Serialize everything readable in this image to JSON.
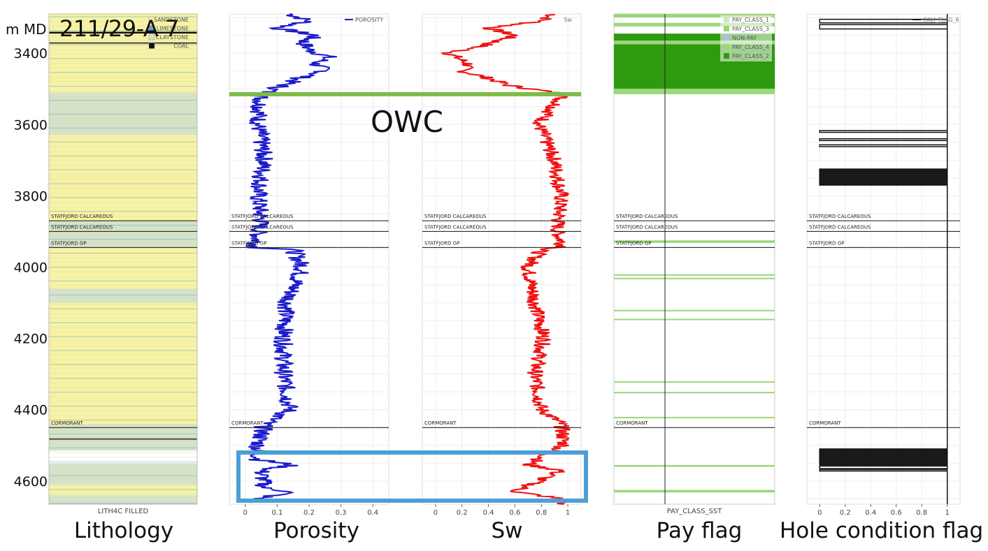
{
  "well_name": "211/29-A 7",
  "depth_unit": "m MD",
  "owc_label": "OWC",
  "colors": {
    "sandstone": "#f8f2a2",
    "limestone": "#5aa9dc",
    "claystone": "#d6e2c6",
    "coal": "#111111",
    "porosity": "#1a1acc",
    "sw": "#f01010",
    "owc_line": "#7dbb46",
    "pay_light": "#9bd77a",
    "pay_dark": "#2f9a0f",
    "highlight_box": "#4b9fd6"
  },
  "chart_data": {
    "type": "line",
    "depth_range": [
      3290,
      4665
    ],
    "depth_ticks": [
      3400,
      3600,
      3800,
      4000,
      4200,
      4400,
      4600
    ],
    "owc_depth": 3515,
    "highlight_interval": [
      4520,
      4655
    ],
    "formation_tops": [
      {
        "name": "STATFJORD CALCAREOUS",
        "depth": 3870
      },
      {
        "name": "STATFJORD CALCAREOUS",
        "depth": 3900
      },
      {
        "name": "STATFJORD GP",
        "depth": 3945
      },
      {
        "name": "CORMORANT",
        "depth": 4450
      }
    ],
    "tracks": [
      {
        "id": "lithology",
        "title": "Lithology",
        "axis_label": "LITH4C FILLED",
        "legend": [
          "SANDSTONE",
          "LIMESTONE",
          "CLAYSTONE",
          "COAL"
        ],
        "intervals": [
          {
            "top": 3290,
            "base": 3340,
            "lith": "sandstone"
          },
          {
            "top": 3340,
            "base": 3345,
            "lith": "coal"
          },
          {
            "top": 3345,
            "base": 3370,
            "lith": "sandstone"
          },
          {
            "top": 3370,
            "base": 3373,
            "lith": "coal"
          },
          {
            "top": 3373,
            "base": 3510,
            "lith": "sandstone"
          },
          {
            "top": 3510,
            "base": 3630,
            "lith": "claystone"
          },
          {
            "top": 3630,
            "base": 3870,
            "lith": "sandstone"
          },
          {
            "top": 3870,
            "base": 3945,
            "lith": "claystone"
          },
          {
            "top": 3945,
            "base": 4060,
            "lith": "sandstone"
          },
          {
            "top": 4060,
            "base": 4100,
            "lith": "claystone"
          },
          {
            "top": 4100,
            "base": 4440,
            "lith": "sandstone"
          },
          {
            "top": 4440,
            "base": 4480,
            "lith": "claystone"
          },
          {
            "top": 4480,
            "base": 4484,
            "lith": "coal"
          },
          {
            "top": 4484,
            "base": 4515,
            "lith": "claystone"
          },
          {
            "top": 4515,
            "base": 4550,
            "lith": "white"
          },
          {
            "top": 4550,
            "base": 4610,
            "lith": "claystone"
          },
          {
            "top": 4610,
            "base": 4640,
            "lith": "sandstone"
          },
          {
            "top": 4640,
            "base": 4665,
            "lith": "claystone"
          }
        ]
      },
      {
        "id": "porosity",
        "title": "Porosity",
        "legend": [
          "POROSITY"
        ],
        "xlim": [
          -0.05,
          0.45
        ],
        "xticks": [
          "0",
          "0.1",
          "0.2",
          "0.3",
          "0.4"
        ],
        "profile": [
          [
            3290,
            0.14
          ],
          [
            3310,
            0.2
          ],
          [
            3330,
            0.1
          ],
          [
            3350,
            0.22
          ],
          [
            3370,
            0.18
          ],
          [
            3390,
            0.2
          ],
          [
            3410,
            0.26
          ],
          [
            3430,
            0.22
          ],
          [
            3450,
            0.25
          ],
          [
            3470,
            0.17
          ],
          [
            3490,
            0.12
          ],
          [
            3505,
            0.08
          ],
          [
            3515,
            0.05
          ],
          [
            3600,
            0.04
          ],
          [
            3700,
            0.06
          ],
          [
            3800,
            0.04
          ],
          [
            3870,
            0.05
          ],
          [
            3945,
            0.03
          ],
          [
            3950,
            0.15
          ],
          [
            4000,
            0.18
          ],
          [
            4100,
            0.13
          ],
          [
            4200,
            0.12
          ],
          [
            4300,
            0.12
          ],
          [
            4400,
            0.14
          ],
          [
            4440,
            0.06
          ],
          [
            4500,
            0.04
          ],
          [
            4540,
            0.04
          ],
          [
            4555,
            0.15
          ],
          [
            4570,
            0.05
          ],
          [
            4620,
            0.06
          ],
          [
            4630,
            0.15
          ],
          [
            4650,
            0.03
          ],
          [
            4660,
            0.02
          ]
        ]
      },
      {
        "id": "sw",
        "title": "Sw",
        "legend": [
          "Sw"
        ],
        "xlim": [
          -0.1,
          1.1
        ],
        "xticks": [
          "0",
          "0.2",
          "0.4",
          "0.6",
          "0.8",
          "1"
        ],
        "profile": [
          [
            3290,
            0.9
          ],
          [
            3310,
            0.8
          ],
          [
            3330,
            0.4
          ],
          [
            3350,
            0.6
          ],
          [
            3380,
            0.35
          ],
          [
            3400,
            0.1
          ],
          [
            3430,
            0.25
          ],
          [
            3450,
            0.2
          ],
          [
            3470,
            0.4
          ],
          [
            3490,
            0.55
          ],
          [
            3505,
            0.8
          ],
          [
            3515,
            0.97
          ],
          [
            3600,
            0.78
          ],
          [
            3700,
            0.9
          ],
          [
            3800,
            0.95
          ],
          [
            3900,
            0.92
          ],
          [
            3945,
            0.97
          ],
          [
            3950,
            0.8
          ],
          [
            4000,
            0.7
          ],
          [
            4100,
            0.75
          ],
          [
            4200,
            0.82
          ],
          [
            4300,
            0.75
          ],
          [
            4400,
            0.8
          ],
          [
            4440,
            0.95
          ],
          [
            4500,
            0.97
          ],
          [
            4555,
            0.7
          ],
          [
            4570,
            0.95
          ],
          [
            4630,
            0.6
          ],
          [
            4650,
            0.95
          ],
          [
            4665,
            0.97
          ]
        ]
      },
      {
        "id": "pay",
        "title": "Pay flag",
        "axis_label": "PAY_CLASS_SST",
        "legend": [
          "PAY_CLASS_1",
          "PAY_CLASS_3",
          "NON-PAY",
          "PAY_CLASS_4",
          "PAY_CLASS_2"
        ],
        "bands": [
          {
            "top": 3290,
            "base": 3300,
            "shade": "light"
          },
          {
            "top": 3315,
            "base": 3325,
            "shade": "light"
          },
          {
            "top": 3345,
            "base": 3365,
            "shade": "dark"
          },
          {
            "top": 3365,
            "base": 3375,
            "shade": "light"
          },
          {
            "top": 3375,
            "base": 3500,
            "shade": "dark"
          },
          {
            "top": 3500,
            "base": 3515,
            "shade": "light"
          },
          {
            "top": 3925,
            "base": 3932,
            "shade": "light"
          },
          {
            "top": 4020,
            "base": 4024,
            "shade": "light"
          },
          {
            "top": 4030,
            "base": 4034,
            "shade": "light"
          },
          {
            "top": 4120,
            "base": 4123,
            "shade": "light"
          },
          {
            "top": 4145,
            "base": 4148,
            "shade": "light"
          },
          {
            "top": 4320,
            "base": 4323,
            "shade": "light"
          },
          {
            "top": 4350,
            "base": 4353,
            "shade": "light"
          },
          {
            "top": 4420,
            "base": 4423,
            "shade": "light"
          },
          {
            "top": 4555,
            "base": 4560,
            "shade": "light"
          },
          {
            "top": 4625,
            "base": 4632,
            "shade": "light"
          }
        ]
      },
      {
        "id": "hole",
        "title": "Hole condition flag",
        "legend": [
          "CALI_FLAG_6"
        ],
        "xlim": [
          -0.1,
          1.1
        ],
        "xticks": [
          "0",
          "0.2",
          "0.4",
          "0.6",
          "0.8",
          "1"
        ],
        "flags": [
          [
            3305,
            3315
          ],
          [
            3320,
            3332
          ],
          [
            3617,
            3622
          ],
          [
            3640,
            3645
          ],
          [
            3657,
            3662
          ],
          [
            3725,
            3770
          ],
          [
            4510,
            4555
          ],
          [
            4558,
            4565
          ],
          [
            4568,
            4572
          ]
        ]
      }
    ]
  }
}
